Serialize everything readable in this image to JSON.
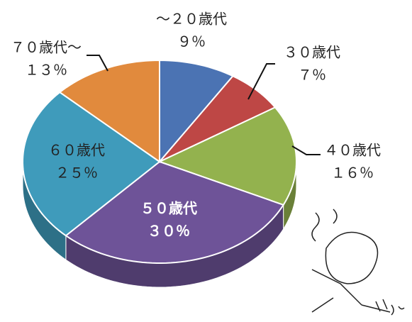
{
  "chart_data": {
    "type": "pie",
    "categories": [
      "～２０歳代",
      "３０歳代",
      "４０歳代",
      "５０歳代",
      "６０歳代",
      "７０歳代～"
    ],
    "values": [
      9,
      7,
      16,
      30,
      25,
      13
    ],
    "value_labels": [
      "９％",
      "７％",
      "１６％",
      "３０％",
      "２５％",
      "１３％"
    ],
    "colors": [
      "#4b73b3",
      "#be4745",
      "#93b24e",
      "#6e5398",
      "#3f9bbb",
      "#e18a3d"
    ]
  }
}
